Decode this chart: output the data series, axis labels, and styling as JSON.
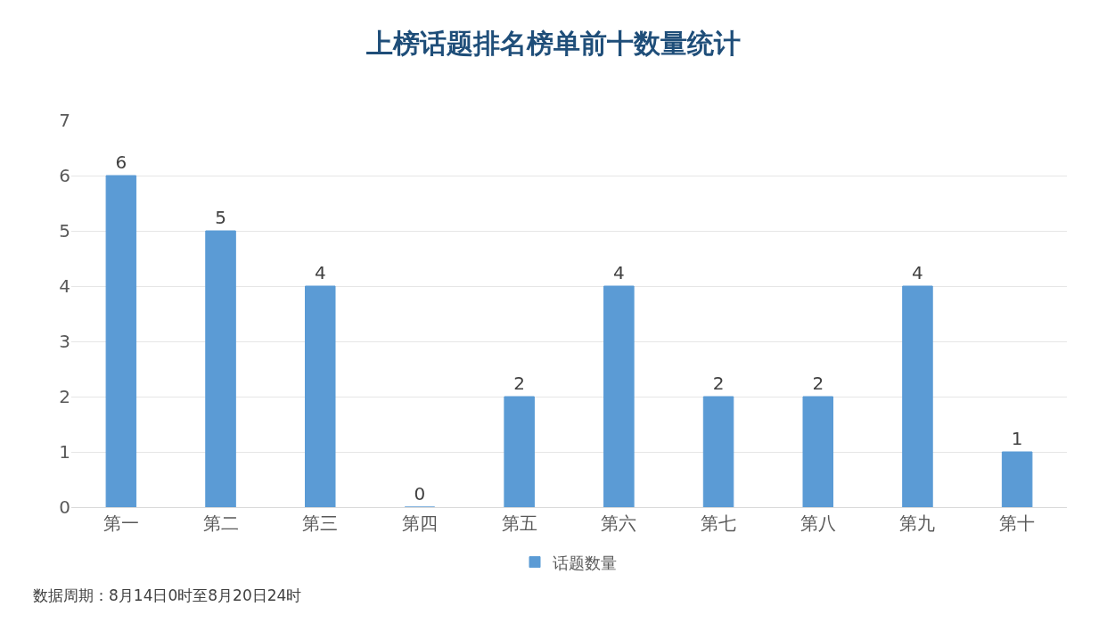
{
  "chart_data": {
    "type": "bar",
    "title": "上榜话题排名榜单前十数量统计",
    "categories": [
      "第一",
      "第二",
      "第三",
      "第四",
      "第五",
      "第六",
      "第七",
      "第八",
      "第九",
      "第十"
    ],
    "series": [
      {
        "name": "话题数量",
        "color": "#5b9bd5",
        "values": [
          6,
          5,
          4,
          0,
          2,
          4,
          2,
          2,
          4,
          1
        ]
      }
    ],
    "ylim": [
      0,
      7
    ],
    "yticks": [
      0,
      1,
      2,
      3,
      4,
      5,
      6,
      7
    ],
    "grid": "y",
    "legend": "bottom",
    "data_labels": true,
    "annotations": [
      "数据周期：8月14日0时至8月20日24时"
    ]
  }
}
